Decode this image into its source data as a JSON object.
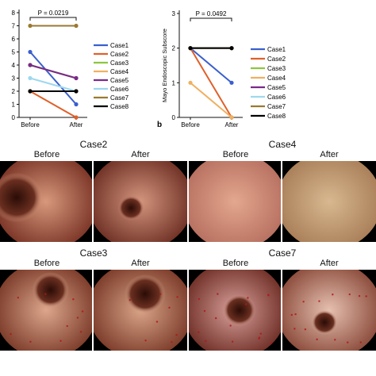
{
  "panel_b_letter": "b",
  "chart_data": [
    {
      "type": "line",
      "categories": [
        "Before",
        "After"
      ],
      "ylim": [
        0,
        8
      ],
      "yticks": [
        0,
        1,
        2,
        3,
        4,
        5,
        6,
        7,
        8
      ],
      "pvalue": "P = 0.0219",
      "legend_position": "right",
      "series": [
        {
          "name": "Case1",
          "values": [
            5,
            1
          ],
          "color": "#3a5fcd"
        },
        {
          "name": "Case2",
          "values": [
            2,
            0
          ],
          "color": "#e0602a"
        },
        {
          "name": "Case3",
          "values": [
            4,
            3
          ],
          "color": "#8cc63f"
        },
        {
          "name": "Case4",
          "values": [
            2,
            2
          ],
          "color": "#f0b060"
        },
        {
          "name": "Case5",
          "values": [
            4,
            3
          ],
          "color": "#7a2a8a"
        },
        {
          "name": "Case6",
          "values": [
            3,
            2
          ],
          "color": "#9ed8ee"
        },
        {
          "name": "Case7",
          "values": [
            7,
            7
          ],
          "color": "#9a7a30"
        },
        {
          "name": "Case8",
          "values": [
            2,
            2
          ],
          "color": "#000000"
        }
      ]
    },
    {
      "type": "line",
      "categories": [
        "Before",
        "After"
      ],
      "ylabel": "Mayo Endoscopic Subscore",
      "ylim": [
        0,
        3
      ],
      "yticks": [
        0,
        1,
        2,
        3
      ],
      "pvalue": "P = 0.0492",
      "legend_position": "right",
      "series": [
        {
          "name": "Case1",
          "values": [
            2,
            1
          ],
          "color": "#3a5fcd"
        },
        {
          "name": "Case2",
          "values": [
            2,
            0
          ],
          "color": "#e0602a"
        },
        {
          "name": "Case3",
          "values": [
            2,
            2
          ],
          "color": "#8cc63f"
        },
        {
          "name": "Case4",
          "values": [
            1,
            0
          ],
          "color": "#f0b060"
        },
        {
          "name": "Case5",
          "values": [
            2,
            2
          ],
          "color": "#7a2a8a"
        },
        {
          "name": "Case6",
          "values": [
            2,
            2
          ],
          "color": "#9ed8ee"
        },
        {
          "name": "Case7",
          "values": [
            2,
            2
          ],
          "color": "#9a7a30"
        },
        {
          "name": "Case8",
          "values": [
            2,
            2
          ],
          "color": "#000000"
        }
      ]
    }
  ],
  "photos": [
    {
      "case": "Case2",
      "before": "Before",
      "after": "After"
    },
    {
      "case": "Case4",
      "before": "Before",
      "after": "After"
    },
    {
      "case": "Case3",
      "before": "Before",
      "after": "After"
    },
    {
      "case": "Case7",
      "before": "Before",
      "after": "After"
    }
  ],
  "colors": {
    "mucosa_light": "#e2a890",
    "mucosa_mid": "#c98068",
    "mucosa_dark": "#6a2f24",
    "background": "#ffffff"
  }
}
